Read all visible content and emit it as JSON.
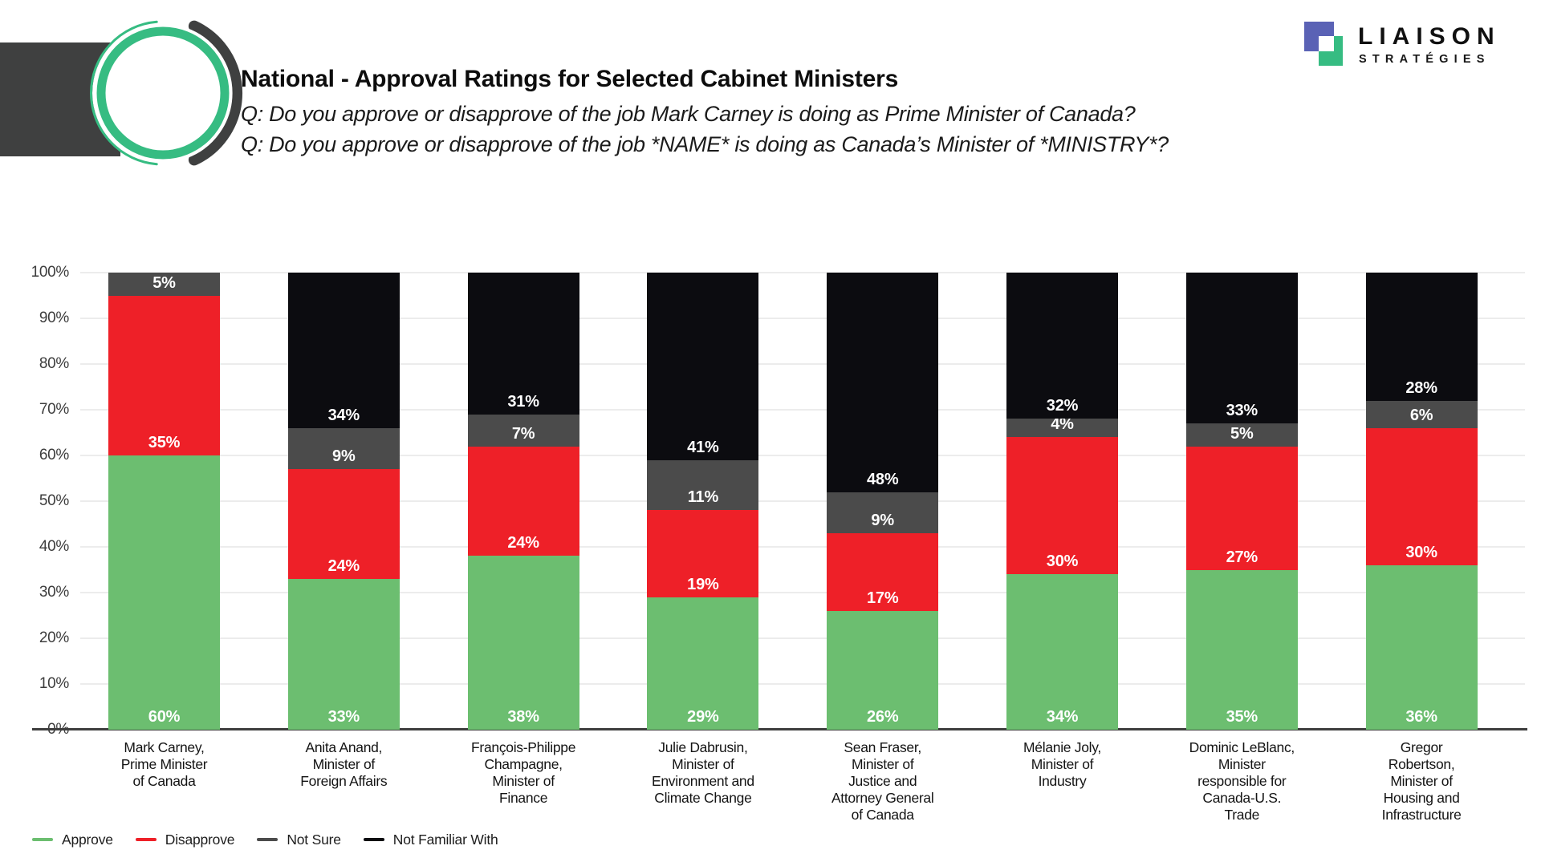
{
  "header": {
    "title": "National - Approval Ratings for Selected Cabinet Ministers",
    "question1": "Q: Do you approve or disapprove of the job Mark Carney is doing as Prime Minister of Canada?",
    "question2": "Q: Do you approve or disapprove of the job *NAME* is doing as Canada’s Minister of *MINISTRY*?"
  },
  "brand": {
    "name": "LIAISON",
    "tagline": "STRATÉGIES",
    "colors": {
      "indigo": "#5a62b5",
      "green": "#36bc82",
      "dark": "#3f4040"
    }
  },
  "chart_data": {
    "type": "bar",
    "stacked": true,
    "ylim": [
      0,
      100
    ],
    "grid": true,
    "legend_position": "bottom-left",
    "value_suffix": "%",
    "y_ticks": [
      "100%",
      "90%",
      "80%",
      "70%",
      "60%",
      "50%",
      "40%",
      "30%",
      "20%",
      "10%",
      "0%"
    ],
    "categories": [
      [
        "Mark Carney,",
        "Prime Minister",
        "of Canada"
      ],
      [
        "Anita Anand,",
        "Minister of",
        "Foreign Affairs"
      ],
      [
        "François-Philippe",
        "Champagne,",
        "Minister of",
        "Finance"
      ],
      [
        "Julie Dabrusin,",
        "Minister of",
        "Environment and",
        "Climate Change"
      ],
      [
        "Sean Fraser,",
        "Minister of",
        "Justice and",
        "Attorney General",
        "of Canada"
      ],
      [
        "Mélanie Joly,",
        "Minister of",
        "Industry"
      ],
      [
        "Dominic LeBlanc,",
        "Minister",
        "responsible for",
        "Canada-U.S.",
        "Trade"
      ],
      [
        "Gregor",
        "Robertson,",
        "Minister of",
        "Housing and",
        "Infrastructure"
      ]
    ],
    "series": [
      {
        "name": "Approve",
        "color": "#6cbe70",
        "values": [
          60,
          33,
          38,
          29,
          26,
          34,
          35,
          36
        ]
      },
      {
        "name": "Disapprove",
        "color": "#ee2028",
        "values": [
          35,
          24,
          24,
          19,
          17,
          30,
          27,
          30
        ]
      },
      {
        "name": "Not Sure",
        "color": "#4b4b4b",
        "values": [
          5,
          9,
          7,
          11,
          9,
          4,
          5,
          6
        ]
      },
      {
        "name": "Not Familiar With",
        "color": "#0c0c10",
        "values": [
          0,
          34,
          31,
          41,
          48,
          32,
          33,
          28
        ]
      }
    ]
  }
}
